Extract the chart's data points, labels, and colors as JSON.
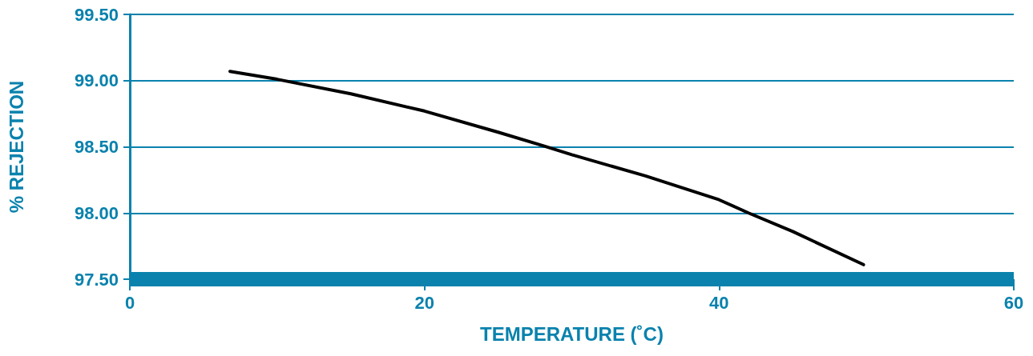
{
  "chart_data": {
    "type": "line",
    "xlabel": "TEMPERATURE (˚C)",
    "ylabel": "% REJECTION",
    "x": [
      6.8,
      10,
      15,
      20,
      25,
      28,
      30,
      35,
      40,
      42,
      45,
      49.8
    ],
    "series": [
      {
        "color": "#000000",
        "values": [
          99.07,
          99.01,
          98.9,
          98.77,
          98.61,
          98.51,
          98.44,
          98.28,
          98.1,
          98.0,
          97.86,
          97.61
        ]
      }
    ],
    "xlim": [
      0,
      60
    ],
    "xticks": [
      0,
      20,
      40,
      60
    ],
    "ylim": [
      97.5,
      99.5
    ],
    "yticks": [
      {
        "value": 97.5,
        "label": "97.50"
      },
      {
        "value": 98,
        "label": "98.00"
      },
      {
        "value": 98.5,
        "label": "98.50"
      },
      {
        "value": 99,
        "label": "99.00"
      },
      {
        "value": 99.5,
        "label": "99.50"
      }
    ],
    "grid": "y",
    "marker": "none",
    "line_style": "solid"
  }
}
